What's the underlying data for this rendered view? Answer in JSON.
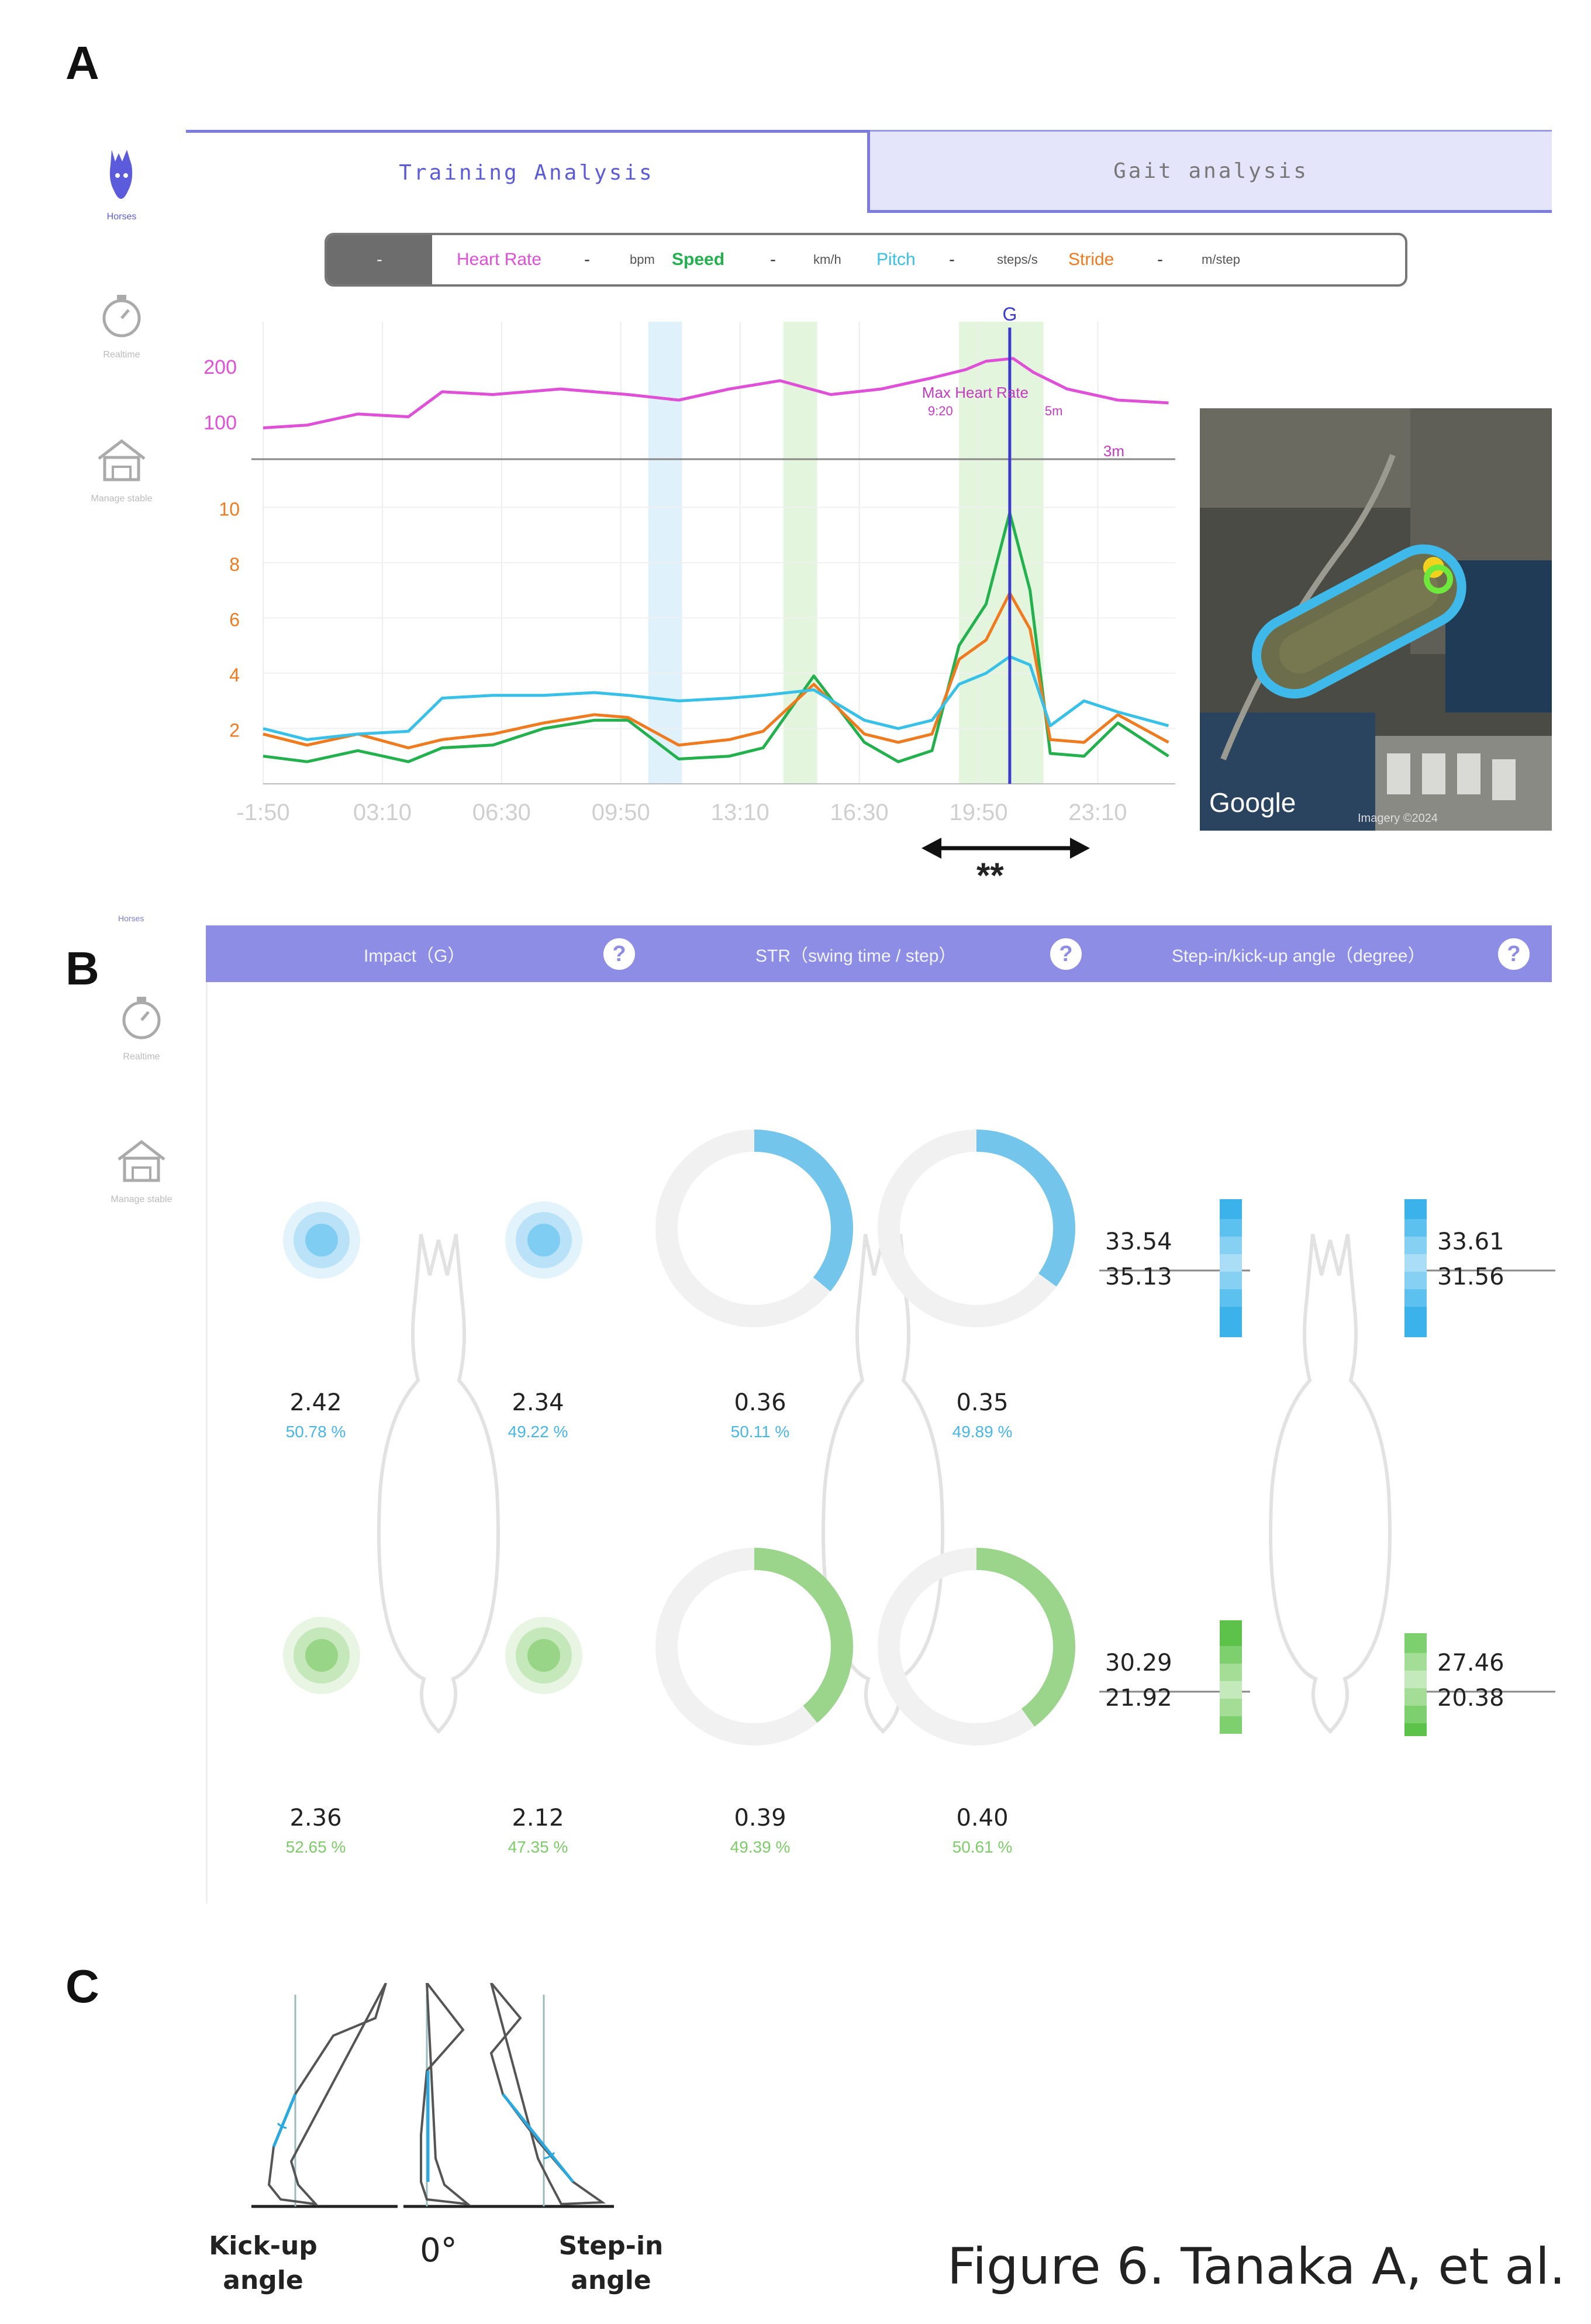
{
  "panels": {
    "a": "A",
    "b": "B",
    "c": "C"
  },
  "sidebar": {
    "items": [
      {
        "label": "Horses",
        "icon": "horse-head-icon",
        "active": true
      },
      {
        "label": "Realtime",
        "icon": "stopwatch-icon",
        "active": false
      },
      {
        "label": "Manage stable",
        "icon": "stable-icon",
        "active": false
      }
    ]
  },
  "tabs": [
    {
      "label": "Training Analysis",
      "active": true
    },
    {
      "label": "Gait analysis",
      "active": false
    }
  ],
  "metric_bar": {
    "dash": "-",
    "items": [
      {
        "label": "Heart Rate",
        "value": "-",
        "unit": "bpm",
        "color": "#e04fd8"
      },
      {
        "label": "Speed",
        "value": "-",
        "unit": "km/h",
        "color": "#22b14c"
      },
      {
        "label": "Pitch",
        "value": "-",
        "unit": "steps/s",
        "color": "#37c0e8"
      },
      {
        "label": "Stride",
        "value": "-",
        "unit": "m/step",
        "color": "#f07a1e"
      }
    ]
  },
  "chart_data": {
    "type": "line",
    "x_ticks": [
      "-1:50",
      "03:10",
      "06:30",
      "09:50",
      "13:10",
      "16:30",
      "19:50",
      "23:10"
    ],
    "hr_ticks": [
      "200",
      "100"
    ],
    "y_ticks": [
      "10",
      "8",
      "6",
      "4",
      "2"
    ],
    "ylim": [
      0,
      11
    ],
    "hr_ylim": [
      60,
      260
    ],
    "goal_marker": "G",
    "hr_annotations": [
      "Max Heart Rate",
      "9:20",
      "5m",
      "3m"
    ],
    "series": [
      {
        "name": "Heart Rate",
        "color": "#e04fd8",
        "x": [
          -1.8,
          -0.5,
          1.0,
          2.5,
          3.5,
          5.0,
          7.0,
          9.0,
          10.5,
          12.0,
          13.5,
          15.0,
          16.5,
          18.0,
          19.0,
          19.6,
          20.4,
          21.0,
          22.0,
          23.5,
          25.0
        ],
        "values": [
          90,
          95,
          115,
          110,
          155,
          150,
          160,
          150,
          140,
          160,
          175,
          150,
          160,
          180,
          195,
          210,
          215,
          190,
          160,
          140,
          135
        ]
      },
      {
        "name": "Speed",
        "color": "#22b14c",
        "x": [
          -1.8,
          -0.5,
          1.0,
          2.5,
          3.5,
          5.0,
          6.5,
          8.0,
          9.0,
          10.5,
          12.0,
          13.0,
          14.5,
          16.0,
          17.0,
          18.0,
          18.8,
          19.6,
          20.3,
          20.9,
          21.5,
          22.5,
          23.5,
          25.0
        ],
        "values": [
          1.0,
          0.8,
          1.2,
          0.8,
          1.3,
          1.4,
          2.0,
          2.3,
          2.3,
          0.9,
          1.0,
          1.3,
          3.9,
          1.5,
          0.8,
          1.2,
          5.0,
          6.5,
          9.8,
          7.0,
          1.1,
          1.0,
          2.2,
          1.0
        ]
      },
      {
        "name": "Stride",
        "color": "#f07a1e",
        "x": [
          -1.8,
          -0.5,
          1.0,
          2.5,
          3.5,
          5.0,
          6.5,
          8.0,
          9.0,
          10.5,
          12.0,
          13.0,
          14.5,
          16.0,
          17.0,
          18.0,
          18.8,
          19.6,
          20.3,
          20.9,
          21.5,
          22.5,
          23.5,
          25.0
        ],
        "values": [
          1.8,
          1.4,
          1.8,
          1.3,
          1.6,
          1.8,
          2.2,
          2.5,
          2.4,
          1.4,
          1.6,
          1.9,
          3.6,
          1.8,
          1.5,
          1.8,
          4.5,
          5.2,
          6.9,
          5.6,
          1.6,
          1.5,
          2.5,
          1.5
        ]
      },
      {
        "name": "Pitch",
        "color": "#37c0e8",
        "x": [
          -1.8,
          -0.5,
          1.0,
          2.5,
          3.5,
          5.0,
          6.5,
          8.0,
          9.0,
          10.5,
          12.0,
          13.0,
          14.5,
          16.0,
          17.0,
          18.0,
          18.8,
          19.6,
          20.3,
          20.9,
          21.5,
          22.5,
          23.5,
          25.0
        ],
        "values": [
          2.0,
          1.6,
          1.8,
          1.9,
          3.1,
          3.2,
          3.2,
          3.3,
          3.2,
          3.0,
          3.1,
          3.2,
          3.4,
          2.3,
          2.0,
          2.3,
          3.6,
          4.0,
          4.6,
          4.3,
          2.1,
          3.0,
          2.6,
          2.1
        ]
      }
    ],
    "highlight_bands": [
      {
        "from": 9.6,
        "to": 10.6,
        "color": "#dff1fb"
      },
      {
        "from": 13.6,
        "to": 14.6,
        "color": "#e3f5dc"
      },
      {
        "from": 18.8,
        "to": 21.3,
        "color": "#e3f5dc"
      }
    ],
    "goal_x": 20.3
  },
  "range_annotation": "**",
  "map": {
    "label": "Google",
    "attribution": "Imagery ©2024"
  },
  "gait": {
    "headers": [
      {
        "label": "Impact（G）"
      },
      {
        "label": "STR（swing time / step）"
      },
      {
        "label": "Step-in/kick-up angle（degree）"
      }
    ],
    "help_glyph": "?",
    "impact": {
      "front_left": {
        "value": "2.42",
        "pct": "50.78 %"
      },
      "front_right": {
        "value": "2.34",
        "pct": "49.22 %"
      },
      "hind_left": {
        "value": "2.36",
        "pct": "52.65 %"
      },
      "hind_right": {
        "value": "2.12",
        "pct": "47.35 %"
      }
    },
    "str": {
      "front_left": {
        "value": "0.36",
        "pct": "50.11 %",
        "fraction": 0.36
      },
      "front_right": {
        "value": "0.35",
        "pct": "49.89 %",
        "fraction": 0.35
      },
      "hind_left": {
        "value": "0.39",
        "pct": "49.39 %",
        "fraction": 0.39
      },
      "hind_right": {
        "value": "0.40",
        "pct": "50.61 %",
        "fraction": 0.4
      }
    },
    "angle": {
      "front_left": {
        "top": "33.54",
        "bottom": "35.13"
      },
      "front_right": {
        "top": "33.61",
        "bottom": "31.56"
      },
      "hind_left": {
        "top": "30.29",
        "bottom": "21.92"
      },
      "hind_right": {
        "top": "27.46",
        "bottom": "20.38"
      }
    },
    "colors": {
      "front": "#49b6e8",
      "hind": "#7ecb6a"
    }
  },
  "panel_c": {
    "kickup_label": [
      "Kick-up",
      "angle"
    ],
    "zero_label": "0°",
    "stepin_label": [
      "Step-in",
      "angle"
    ]
  },
  "caption": "Figure 6. Tanaka A, et al."
}
